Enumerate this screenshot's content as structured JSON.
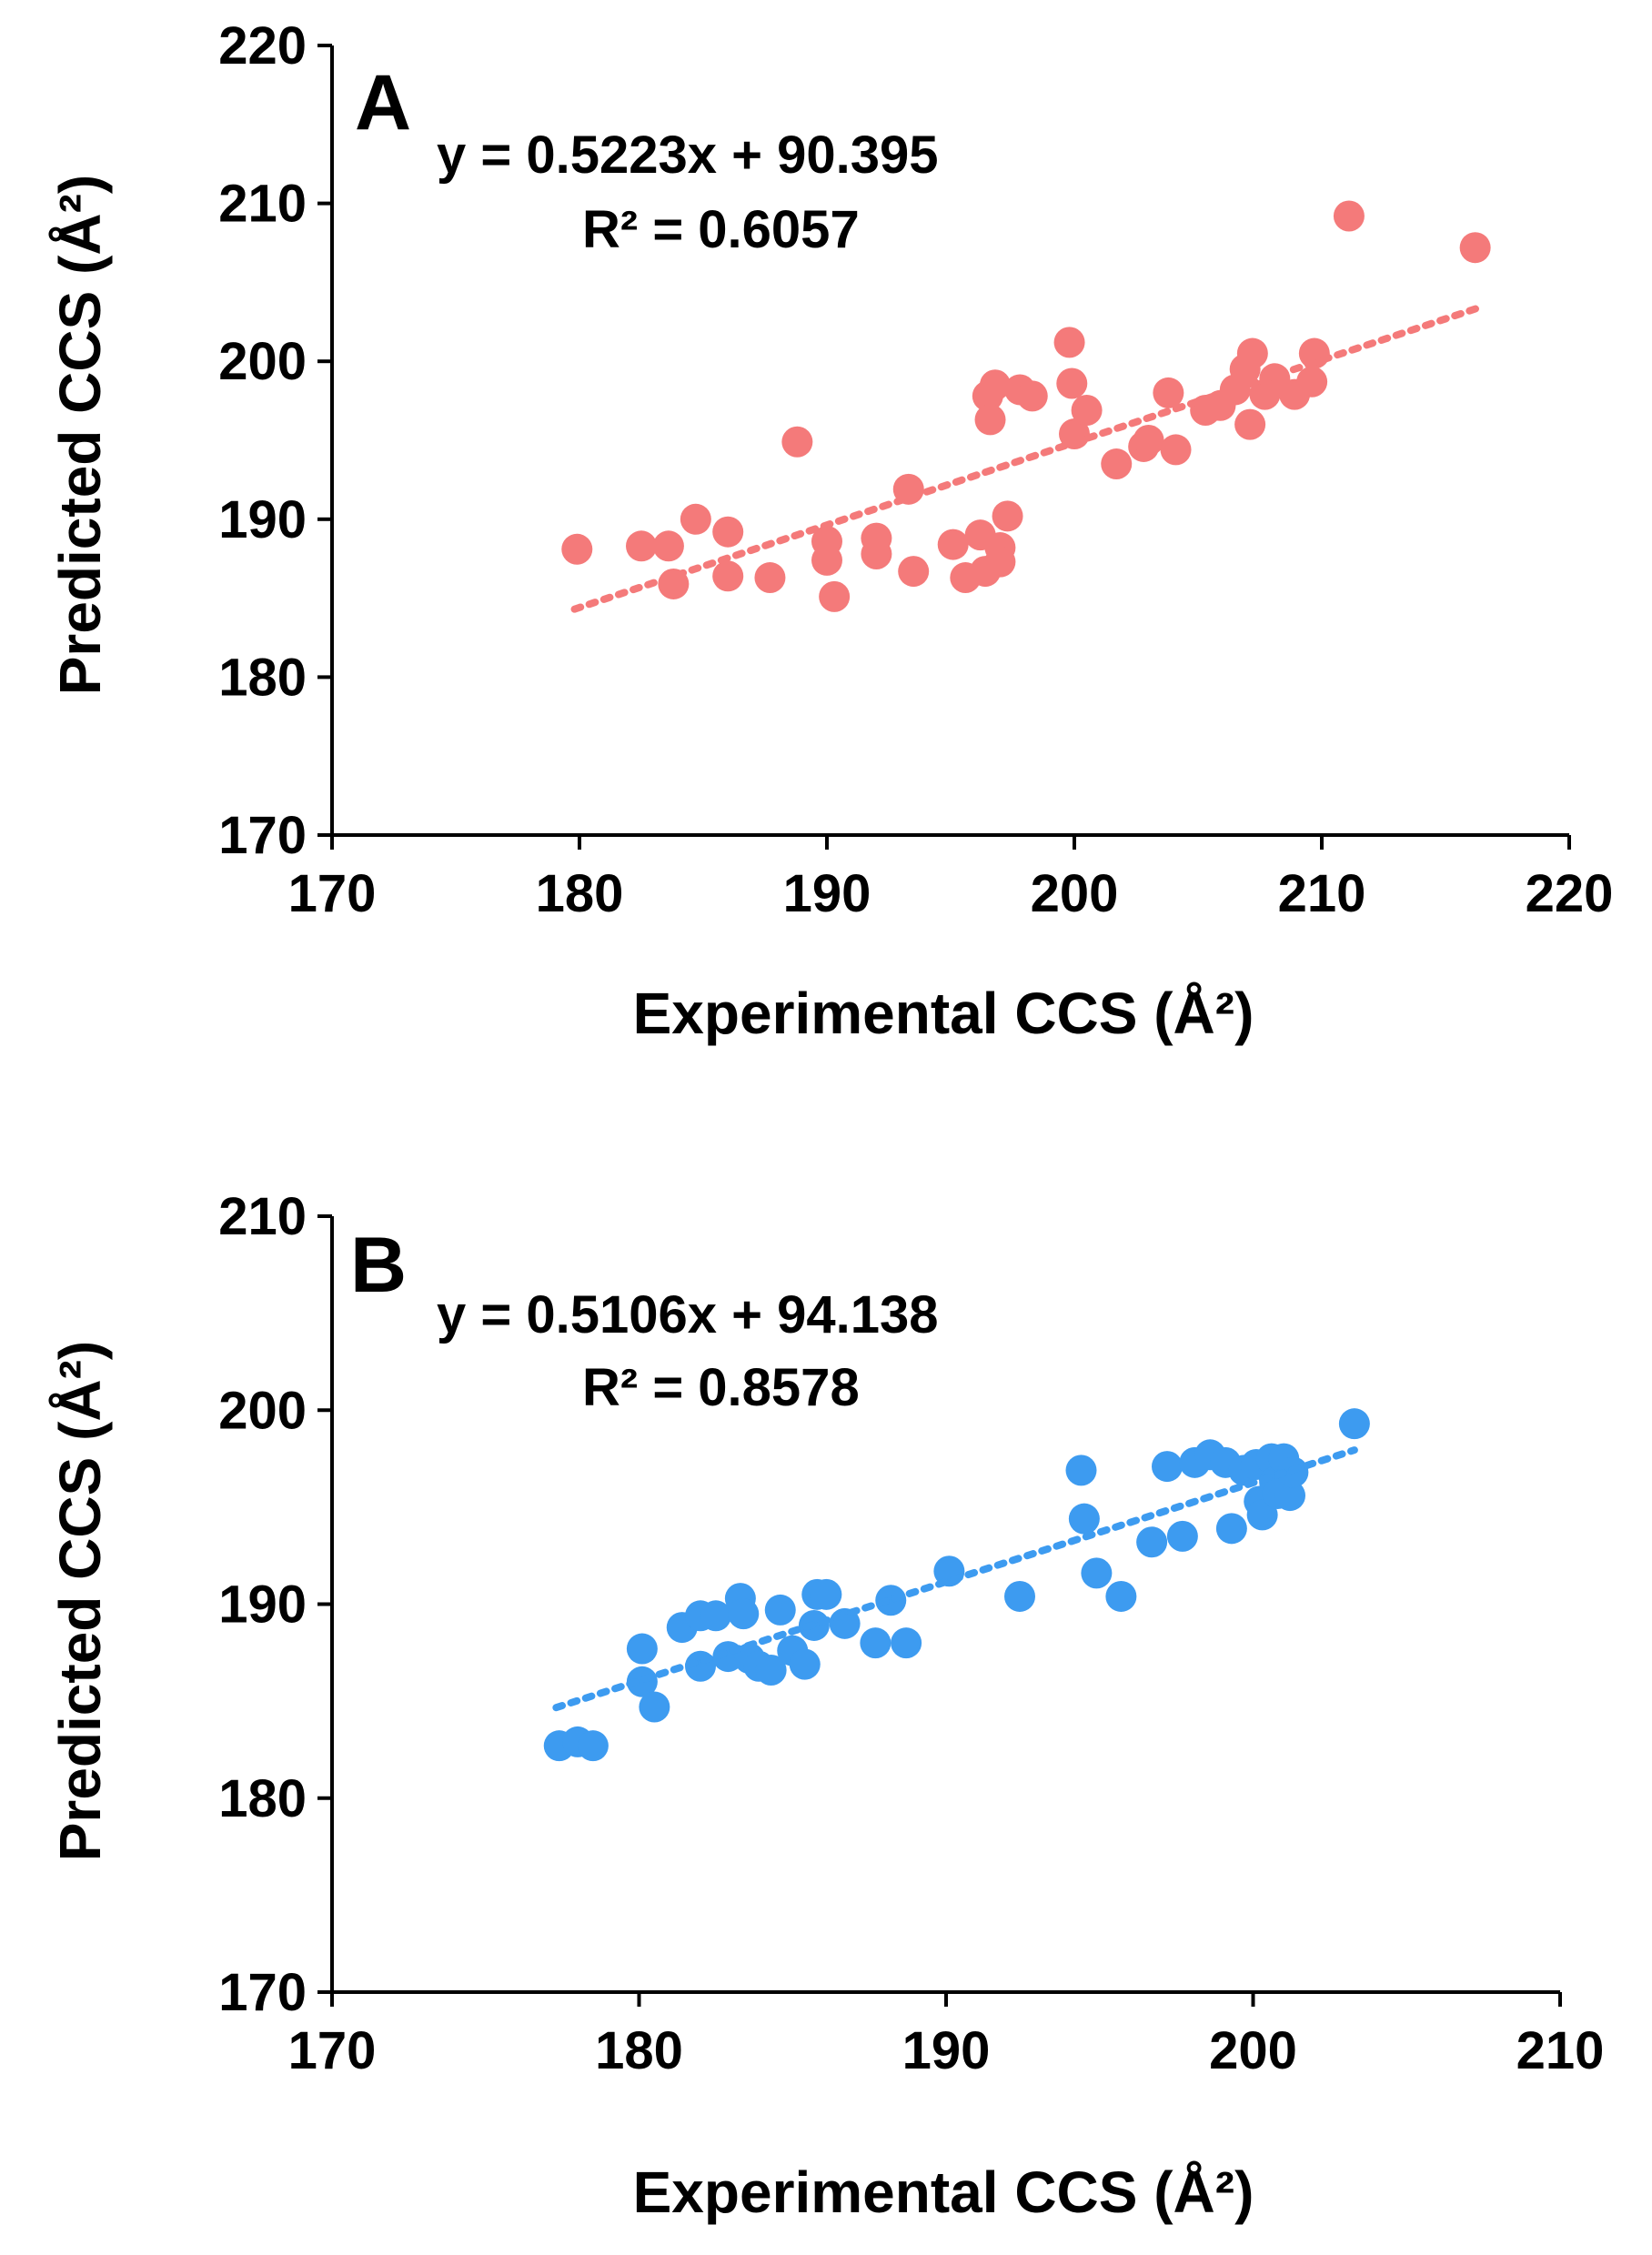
{
  "chart_data": [
    {
      "panel": "A",
      "type": "scatter",
      "color": "#f47a7a",
      "trendline_color": "#f47a7a",
      "xlabel": "Experimental CCS (Å²)",
      "ylabel": "Predicted CCS (Å²)",
      "xlim": [
        170,
        220
      ],
      "ylim": [
        170,
        220
      ],
      "xticks": [
        170,
        180,
        190,
        200,
        210,
        220
      ],
      "yticks": [
        170,
        180,
        190,
        200,
        210,
        220
      ],
      "equation": "y = 0.5223x + 90.395",
      "r2": "R² = 0.6057",
      "trendline": {
        "slope": 0.5223,
        "intercept": 90.395,
        "x_range": [
          179.8,
          216.3
        ],
        "style": "dotted"
      },
      "grid": false,
      "points": [
        [
          179.9,
          188.1
        ],
        [
          182.5,
          188.3
        ],
        [
          183.6,
          188.3
        ],
        [
          183.8,
          185.9
        ],
        [
          184.7,
          190.0
        ],
        [
          186.0,
          189.2
        ],
        [
          186.0,
          186.4
        ],
        [
          187.7,
          186.3
        ],
        [
          188.8,
          194.9
        ],
        [
          190.0,
          188.6
        ],
        [
          190.0,
          187.4
        ],
        [
          190.3,
          185.1
        ],
        [
          192.0,
          188.8
        ],
        [
          192.0,
          187.8
        ],
        [
          193.3,
          191.9
        ],
        [
          193.5,
          186.7
        ],
        [
          195.1,
          188.4
        ],
        [
          195.6,
          186.3
        ],
        [
          196.2,
          189.0
        ],
        [
          196.4,
          186.7
        ],
        [
          196.5,
          197.8
        ],
        [
          196.6,
          196.3
        ],
        [
          196.8,
          198.5
        ],
        [
          197.0,
          188.2
        ],
        [
          197.0,
          187.3
        ],
        [
          197.3,
          190.2
        ],
        [
          197.8,
          198.2
        ],
        [
          198.3,
          197.8
        ],
        [
          199.8,
          201.2
        ],
        [
          199.9,
          198.6
        ],
        [
          200.0,
          195.4
        ],
        [
          200.5,
          196.9
        ],
        [
          201.7,
          193.5
        ],
        [
          202.8,
          194.6
        ],
        [
          203.0,
          195.0
        ],
        [
          203.8,
          198.0
        ],
        [
          204.1,
          194.4
        ],
        [
          205.3,
          196.9
        ],
        [
          205.9,
          197.2
        ],
        [
          206.5,
          198.2
        ],
        [
          206.9,
          199.5
        ],
        [
          207.2,
          200.5
        ],
        [
          207.1,
          196.0
        ],
        [
          207.7,
          197.9
        ],
        [
          208.1,
          198.9
        ],
        [
          208.9,
          197.9
        ],
        [
          209.6,
          198.7
        ],
        [
          209.7,
          200.5
        ],
        [
          211.1,
          209.2
        ],
        [
          216.2,
          207.2
        ]
      ]
    },
    {
      "panel": "B",
      "type": "scatter",
      "color": "#3d9bf0",
      "trendline_color": "#3d9bf0",
      "xlabel": "Experimental CCS (Å²)",
      "ylabel": "Predicted CCS (Å²)",
      "xlim": [
        170,
        210
      ],
      "ylim": [
        170,
        210
      ],
      "xticks": [
        170,
        180,
        190,
        200,
        210
      ],
      "yticks": [
        170,
        180,
        190,
        200,
        210
      ],
      "equation": "y = 0.5106x + 94.138",
      "r2": "R² = 0.8578",
      "trendline": {
        "slope": 0.5106,
        "intercept": 94.138,
        "x_range": [
          177.3,
          203.3
        ],
        "style": "dotted"
      },
      "grid": false,
      "points": [
        [
          177.4,
          182.7
        ],
        [
          178.0,
          182.9
        ],
        [
          178.5,
          182.7
        ],
        [
          180.1,
          187.7
        ],
        [
          180.1,
          186.0
        ],
        [
          180.5,
          184.7
        ],
        [
          181.4,
          188.8
        ],
        [
          182.0,
          186.8
        ],
        [
          182.0,
          189.4
        ],
        [
          182.5,
          189.4
        ],
        [
          182.9,
          187.3
        ],
        [
          183.3,
          190.3
        ],
        [
          183.4,
          189.5
        ],
        [
          183.6,
          187.2
        ],
        [
          183.9,
          186.8
        ],
        [
          184.3,
          186.6
        ],
        [
          184.6,
          189.7
        ],
        [
          185.0,
          187.6
        ],
        [
          185.4,
          186.9
        ],
        [
          185.7,
          188.9
        ],
        [
          185.8,
          190.5
        ],
        [
          186.1,
          190.5
        ],
        [
          186.7,
          189.0
        ],
        [
          187.7,
          188.0
        ],
        [
          188.2,
          190.2
        ],
        [
          188.7,
          188.0
        ],
        [
          190.1,
          191.7
        ],
        [
          192.4,
          190.4
        ],
        [
          194.4,
          196.9
        ],
        [
          194.5,
          194.4
        ],
        [
          194.9,
          191.6
        ],
        [
          195.7,
          190.4
        ],
        [
          196.7,
          193.2
        ],
        [
          197.2,
          197.1
        ],
        [
          197.7,
          193.5
        ],
        [
          198.1,
          197.3
        ],
        [
          198.6,
          197.7
        ],
        [
          199.1,
          197.3
        ],
        [
          199.3,
          193.9
        ],
        [
          199.7,
          196.9
        ],
        [
          200.1,
          197.2
        ],
        [
          200.2,
          195.3
        ],
        [
          200.3,
          194.6
        ],
        [
          200.6,
          197.5
        ],
        [
          200.7,
          196.3
        ],
        [
          200.8,
          195.7
        ],
        [
          201.0,
          197.5
        ],
        [
          201.2,
          195.6
        ],
        [
          201.3,
          196.8
        ],
        [
          203.3,
          199.3
        ]
      ]
    }
  ]
}
